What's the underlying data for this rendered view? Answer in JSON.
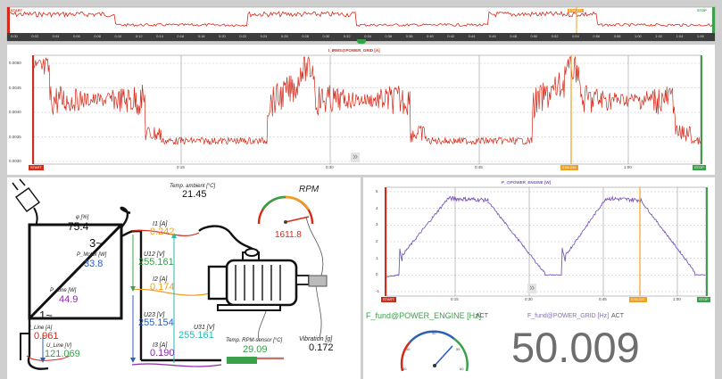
{
  "overview": {
    "start_label": "START",
    "stop_label": "STOP",
    "cursor_label": "0:54.231",
    "ticks": [
      "0:00",
      "0:02",
      "0:04",
      "0:06",
      "0:08",
      "0:10",
      "0:12",
      "0:14",
      "0:16",
      "0:18",
      "0:20",
      "0:22",
      "0:24",
      "0:26",
      "0:28",
      "0:30",
      "0:32",
      "0:34",
      "0:36",
      "0:38",
      "0:40",
      "0:42",
      "0:44",
      "0:46",
      "0:48",
      "0:50",
      "0:52",
      "0:54",
      "0:56",
      "0:58",
      "1:00",
      "1:02",
      "1:04",
      "1:06"
    ]
  },
  "irms_chart": {
    "title": "I_IRMS@POWER_GRID [A]",
    "y_ticks": [
      "0.0050",
      "0.0045",
      "0.0040",
      "0.0035",
      "0.0030"
    ],
    "x_ticks": [
      "0:15",
      "0:30",
      "0:45",
      "1:00"
    ],
    "start_label": "START",
    "stop_label": "STOP",
    "cursor_label": "0:54.231",
    "scroll_glyph": "»",
    "color": "#d42a1a"
  },
  "power_chart": {
    "title": "P_@POWER_ENGINE [W]",
    "y_ticks": [
      "5",
      "4",
      "3",
      "2",
      "1",
      "0",
      "-1"
    ],
    "x_ticks": [
      "0:15",
      "0:30",
      "0:45",
      "1:00"
    ],
    "start_label": "START",
    "stop_label": "STOP",
    "cursor_label": "0:54.231",
    "scroll_glyph": "»",
    "color": "#7b58b8"
  },
  "schematic": {
    "phi_label": "φ [%]",
    "phi_value": "75.4",
    "three_phase": "3~",
    "one_phase": "1~",
    "p_motor_label": "P_Motor [W]",
    "p_motor_value": "33.8",
    "p_line_label": "P_Line [W]",
    "p_line_value": "44.9",
    "i_line_label": "I_Line [A]",
    "i_line_value": "0.961",
    "u_line_label": "U_Line [V]",
    "u_line_value": "121.069",
    "i1_label": "I1 [A]",
    "i1_value": "0.242",
    "u12_label": "U12 [V]",
    "u12_value": "255.161",
    "i2_label": "I2 [A]",
    "i2_value": "0.174",
    "u23_label": "U23 [V]",
    "u23_value": "255.154",
    "u31_label": "U31 [V]",
    "u31_value": "255.161",
    "i3_label": "I3 [A]",
    "i3_value": "0.190",
    "temp_ambient_label": "Temp. ambient [°C]",
    "temp_ambient_value": "21.45",
    "rpm_label": "RPM",
    "rpm_value": "1611.8",
    "temp_rpm_label": "Temp. RPM-sensor [°C]",
    "temp_rpm_value": "29.09",
    "vibration_label": "Vibration [g]",
    "vibration_value": "0.172"
  },
  "freq": {
    "engine_label": "F_fund@POWER_ENGINE [Hz]",
    "engine_act": "ACT",
    "gauge_ticks": [
      "40",
      "45",
      "50",
      "55",
      "60"
    ],
    "grid_label": "F_fund@POWER_GRID [Hz]",
    "grid_act": "ACT",
    "grid_value": "50.009"
  },
  "colors": {
    "red": "#d42a1a",
    "green": "#3aa04a",
    "blue": "#2c5fb8",
    "purple": "#8a2aa8",
    "orange": "#f0a020",
    "teal": "#2ab8b8"
  }
}
